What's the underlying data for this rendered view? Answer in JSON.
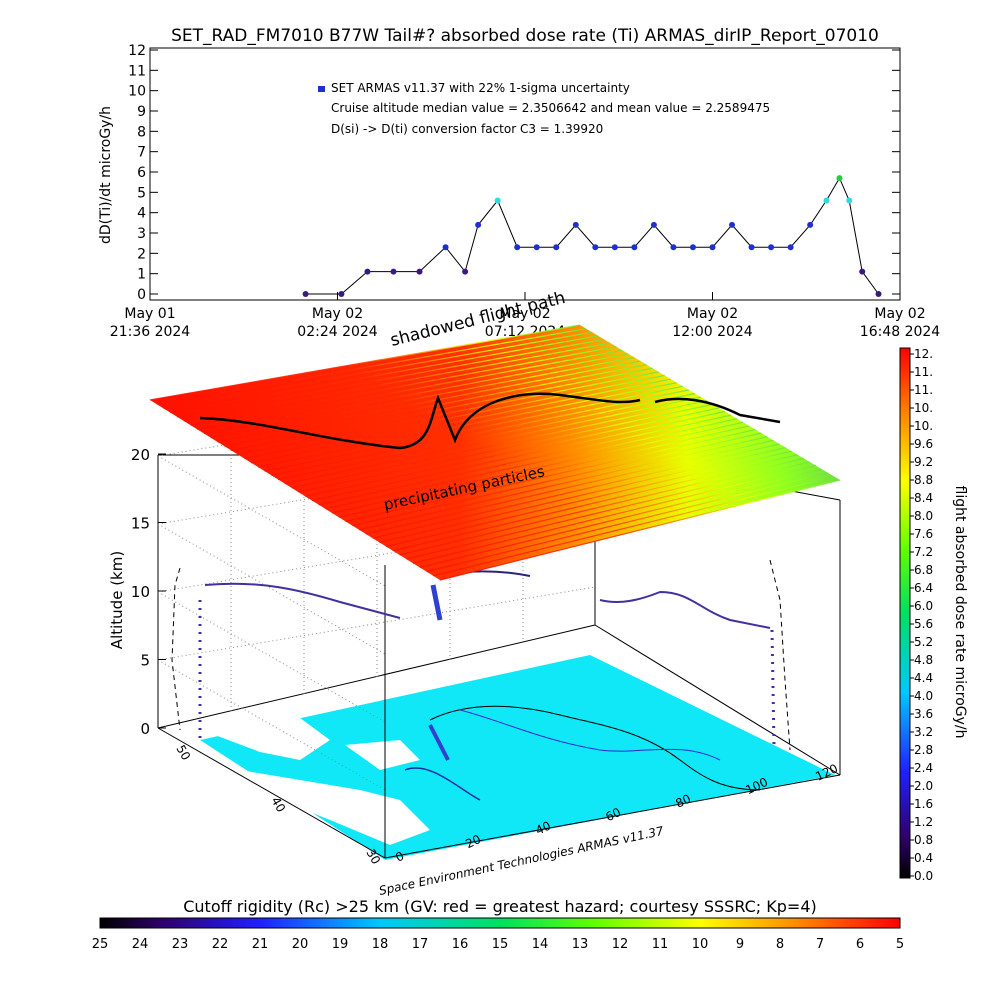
{
  "title": "SET_RAD_FM7010  B77W Tail#? absorbed dose rate (Ti) ARMAS_dirIP_Report_07010",
  "top_chart": {
    "ylabel": "dD(Ti)/dt microGy/h",
    "yticks": [
      "0",
      "1",
      "2",
      "3",
      "4",
      "5",
      "6",
      "7",
      "8",
      "9",
      "10",
      "11",
      "12"
    ],
    "xticks": [
      {
        "line1": "May 01",
        "line2": "21:36 2024"
      },
      {
        "line1": "May 02",
        "line2": "02:24 2024"
      },
      {
        "line1": "May 02",
        "line2": "07:12 2024"
      },
      {
        "line1": "May 02",
        "line2": "12:00 2024"
      },
      {
        "line1": "May 02",
        "line2": "16:48 2024"
      }
    ],
    "legend": "SET ARMAS v11.37 with 22% 1-sigma uncertainty",
    "note1": "Cruise altitude median value = 2.3506642 and mean value = 2.2589475",
    "note2": "D(si) -> D(ti) conversion factor C3 = 1.39920"
  },
  "chart_data": [
    {
      "type": "scatter",
      "title": "SET_RAD_FM7010  B77W Tail#? absorbed dose rate (Ti) ARMAS_dirIP_Report_07010",
      "xlabel": "",
      "ylabel": "dD(Ti)/dt microGy/h",
      "ylim": [
        0,
        12
      ],
      "xlim": [
        "2024-05-01 21:36",
        "2024-05-02 16:48"
      ],
      "series": [
        {
          "name": "SET ARMAS v11.37 with 22% 1-sigma uncertainty",
          "x": [
            "2024-05-02 01:35",
            "2024-05-02 02:30",
            "2024-05-02 03:10",
            "2024-05-02 03:50",
            "2024-05-02 04:30",
            "2024-05-02 05:10",
            "2024-05-02 05:40",
            "2024-05-02 06:00",
            "2024-05-02 06:30",
            "2024-05-02 07:00",
            "2024-05-02 07:30",
            "2024-05-02 08:00",
            "2024-05-02 08:30",
            "2024-05-02 09:00",
            "2024-05-02 09:30",
            "2024-05-02 10:00",
            "2024-05-02 10:30",
            "2024-05-02 11:00",
            "2024-05-02 11:30",
            "2024-05-02 12:00",
            "2024-05-02 12:30",
            "2024-05-02 13:00",
            "2024-05-02 13:30",
            "2024-05-02 14:00",
            "2024-05-02 14:30",
            "2024-05-02 14:55",
            "2024-05-02 15:15",
            "2024-05-02 15:30",
            "2024-05-02 15:50",
            "2024-05-02 16:15"
          ],
          "y": [
            0,
            0,
            1.1,
            1.1,
            1.1,
            2.3,
            1.1,
            3.4,
            4.6,
            2.3,
            2.3,
            2.3,
            3.4,
            2.3,
            2.3,
            2.3,
            3.4,
            2.3,
            2.3,
            2.3,
            3.4,
            2.3,
            2.3,
            2.3,
            3.4,
            4.6,
            5.7,
            4.6,
            1.1,
            0
          ]
        }
      ]
    },
    {
      "type": "scatter",
      "title": "",
      "xlabel": "",
      "ylabel": "Altitude (km)",
      "zlim": [
        0,
        20
      ],
      "zticks": [
        0,
        5,
        10,
        15,
        20
      ],
      "lon_ticks": [
        0,
        20,
        40,
        60,
        80,
        100,
        120
      ],
      "lat_ticks": [
        30,
        40,
        50
      ],
      "annotations": [
        "shadowed flight path",
        "precipitating particles",
        "Space Environment Technologies ARMAS v11.37"
      ]
    },
    {
      "type": "heatmap",
      "title": "flight absorbed dose rate microGy/h",
      "colorbar_ticks": [
        "0.0",
        "0.4",
        "0.8",
        "1.2",
        "1.6",
        "2.0",
        "2.4",
        "2.8",
        "3.2",
        "3.6",
        "4.0",
        "4.4",
        "4.8",
        "5.2",
        "5.6",
        "6.0",
        "6.4",
        "6.8",
        "7.2",
        "7.6",
        "8.0",
        "8.4",
        "8.8",
        "9.2",
        "9.6",
        "10.",
        "10.",
        "11.",
        "11.",
        "12."
      ],
      "range": [
        0,
        12
      ]
    },
    {
      "type": "heatmap",
      "title": "Cutoff rigidity (Rc) >25 km (GV: red = greatest hazard; courtesy SSSRC; Kp=4)",
      "colorbar_ticks": [
        "25",
        "24",
        "23",
        "22",
        "21",
        "20",
        "19",
        "18",
        "17",
        "16",
        "15",
        "14",
        "13",
        "12",
        "11",
        "10",
        "9",
        "8",
        "7",
        "6",
        "5"
      ],
      "range": [
        25,
        5
      ]
    }
  ],
  "plot3d": {
    "zlabel": "Altitude (km)",
    "zticks": [
      "0",
      "5",
      "10",
      "15",
      "20"
    ],
    "lon_ticks": [
      "0",
      "20",
      "40",
      "60",
      "80",
      "100",
      "120"
    ],
    "lat_ticks": [
      "30",
      "40",
      "50"
    ],
    "shadow_label": "shadowed flight path",
    "particles_label": "precipitating particles",
    "credit": "Space Environment Technologies ARMAS v11.37"
  },
  "dose_colorbar": {
    "label": "flight absorbed dose rate microGy/h",
    "ticks": [
      "0.0",
      "0.4",
      "0.8",
      "1.2",
      "1.6",
      "2.0",
      "2.4",
      "2.8",
      "3.2",
      "3.6",
      "4.0",
      "4.4",
      "4.8",
      "5.2",
      "5.6",
      "6.0",
      "6.4",
      "6.8",
      "7.2",
      "7.6",
      "8.0",
      "8.4",
      "8.8",
      "9.2",
      "9.6",
      "10.",
      "10.",
      "11.",
      "11.",
      "12."
    ]
  },
  "rigidity_colorbar": {
    "label": "Cutoff rigidity (Rc) >25 km (GV: red = greatest hazard; courtesy SSSRC; Kp=4)",
    "ticks": [
      "25",
      "24",
      "23",
      "22",
      "21",
      "20",
      "19",
      "18",
      "17",
      "16",
      "15",
      "14",
      "13",
      "12",
      "11",
      "10",
      "9",
      "8",
      "7",
      "6",
      "5"
    ]
  },
  "colors": {
    "marker_blue": "#2030d0",
    "marker_purple": "#3a1a7a",
    "marker_cyan": "#30d8e0",
    "marker_green": "#20d040",
    "ocean": "#10e8f8",
    "land": "#ffffff"
  }
}
